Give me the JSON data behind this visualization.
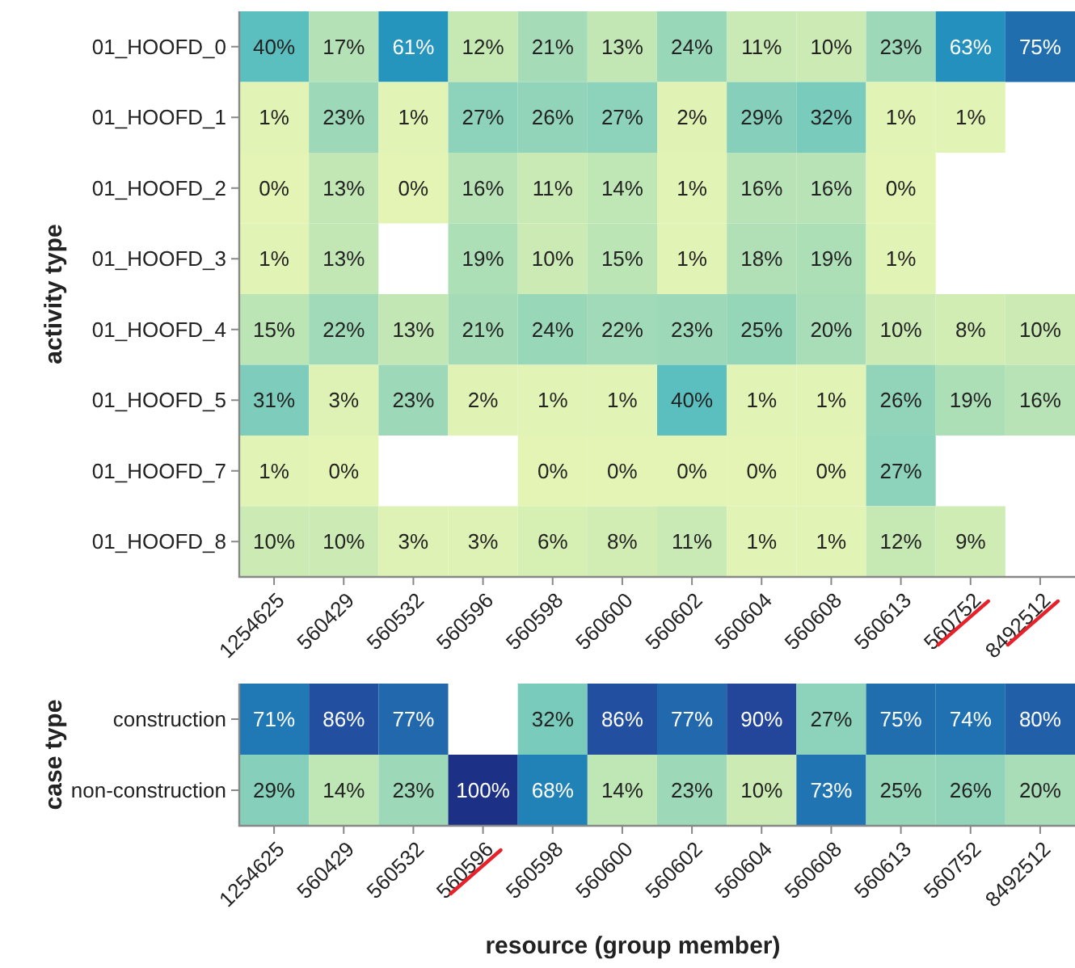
{
  "chart_data": [
    {
      "type": "heatmap",
      "ylabel": "activity type",
      "categories": [
        "1254625",
        "560429",
        "560532",
        "560596",
        "560598",
        "560600",
        "560602",
        "560604",
        "560608",
        "560613",
        "560752",
        "8492512"
      ],
      "y_categories": [
        "01_HOOFD_0",
        "01_HOOFD_1",
        "01_HOOFD_2",
        "01_HOOFD_3",
        "01_HOOFD_4",
        "01_HOOFD_5",
        "01_HOOFD_7",
        "01_HOOFD_8"
      ],
      "cells": [
        [
          40,
          17,
          61,
          12,
          21,
          13,
          24,
          11,
          10,
          23,
          63,
          75
        ],
        [
          1,
          23,
          1,
          27,
          26,
          27,
          2,
          29,
          32,
          1,
          1,
          null
        ],
        [
          0,
          13,
          0,
          16,
          11,
          14,
          1,
          16,
          16,
          0,
          null,
          null
        ],
        [
          1,
          13,
          null,
          19,
          10,
          15,
          1,
          18,
          19,
          1,
          null,
          null
        ],
        [
          15,
          22,
          13,
          21,
          24,
          22,
          23,
          25,
          20,
          10,
          8,
          10
        ],
        [
          31,
          3,
          23,
          2,
          1,
          1,
          40,
          1,
          1,
          26,
          19,
          16
        ],
        [
          1,
          0,
          null,
          null,
          0,
          0,
          0,
          0,
          0,
          27,
          null,
          null
        ],
        [
          10,
          10,
          3,
          3,
          6,
          8,
          11,
          1,
          1,
          12,
          9,
          null
        ]
      ],
      "cell_labels": [
        [
          "40%",
          "17%",
          "61%",
          "12%",
          "21%",
          "13%",
          "24%",
          "11%",
          "10%",
          "23%",
          "63%",
          "75%"
        ],
        [
          "1%",
          "23%",
          "1%",
          "27%",
          "26%",
          "27%",
          "2%",
          "29%",
          "32%",
          "1%",
          "1%",
          null
        ],
        [
          "0%",
          "13%",
          "0%",
          "16%",
          "11%",
          "14%",
          "1%",
          "16%",
          "16%",
          "0%",
          null,
          null
        ],
        [
          "1%",
          "13%",
          null,
          "19%",
          "10%",
          "15%",
          "1%",
          "18%",
          "19%",
          "1%",
          null,
          null
        ],
        [
          "15%",
          "22%",
          "13%",
          "21%",
          "24%",
          "22%",
          "23%",
          "25%",
          "20%",
          "10%",
          "8%",
          "10%"
        ],
        [
          "31%",
          "3%",
          "23%",
          "2%",
          "1%",
          "1%",
          "40%",
          "1%",
          "1%",
          "26%",
          "19%",
          "16%"
        ],
        [
          "1%",
          "0%",
          null,
          null,
          "0%",
          "0%",
          "0%",
          "0%",
          "0%",
          "27%",
          null,
          null
        ],
        [
          "10%",
          "10%",
          "3%",
          "3%",
          "6%",
          "8%",
          "11%",
          "1%",
          "1%",
          "12%",
          "9%",
          null
        ]
      ]
    },
    {
      "type": "heatmap",
      "ylabel": "case type",
      "xlabel": "resource (group member)",
      "categories": [
        "1254625",
        "560429",
        "560532",
        "560596",
        "560598",
        "560600",
        "560602",
        "560604",
        "560608",
        "560613",
        "560752",
        "8492512"
      ],
      "y_categories": [
        "construction",
        "non-construction"
      ],
      "cells": [
        [
          71,
          86,
          77,
          null,
          32,
          86,
          77,
          90,
          27,
          75,
          74,
          80
        ],
        [
          29,
          14,
          23,
          100,
          68,
          14,
          23,
          10,
          73,
          25,
          26,
          20
        ]
      ],
      "cell_labels": [
        [
          "71%",
          "86%",
          "77%",
          null,
          "32%",
          "86%",
          "77%",
          "90%",
          "27%",
          "75%",
          "74%",
          "80%"
        ],
        [
          "29%",
          "14%",
          "23%",
          "100%",
          "68%",
          "14%",
          "23%",
          "10%",
          "73%",
          "25%",
          "26%",
          "20%"
        ]
      ]
    }
  ]
}
